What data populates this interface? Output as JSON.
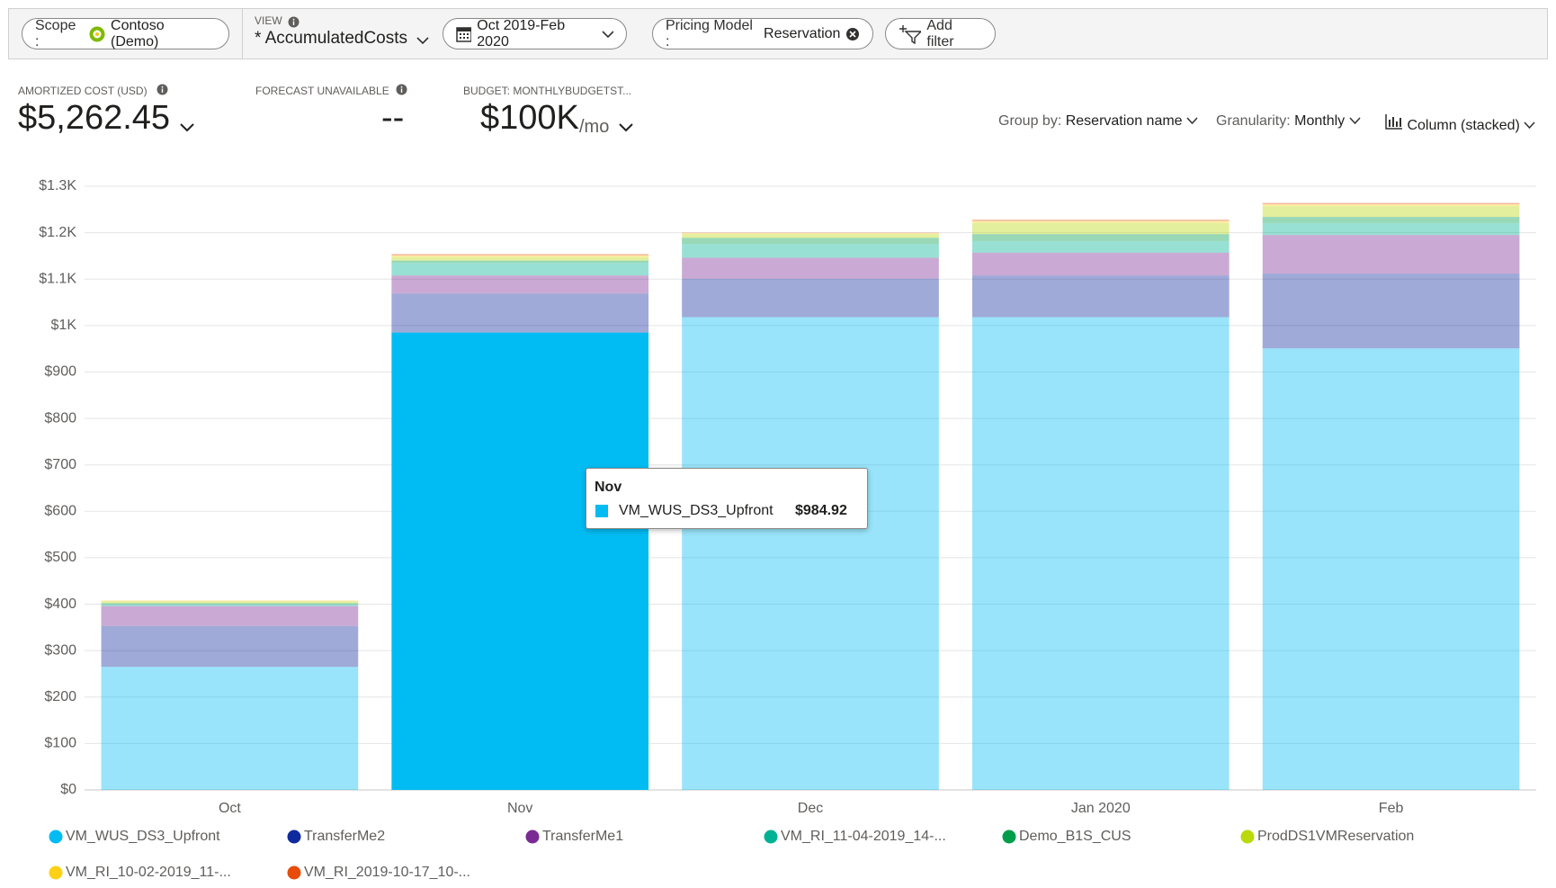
{
  "toolbar": {
    "scope": {
      "label": "Scope :",
      "value": "Contoso (Demo)"
    },
    "view": {
      "label": "VIEW",
      "value": "* AccumulatedCosts"
    },
    "date_range": "Oct 2019-Feb 2020",
    "filter": {
      "label": "Pricing Model :",
      "value": "Reservation"
    },
    "add_filter": "Add filter"
  },
  "kpis": [
    {
      "label": "AMORTIZED COST (USD)",
      "value": "$5,262.45"
    },
    {
      "label": "FORECAST UNAVAILABLE",
      "value": "--"
    },
    {
      "label": "BUDGET: MONTHLYBUDGETST...",
      "value": "$100K",
      "unit": "/mo"
    }
  ],
  "controls": [
    {
      "label": "Group by:",
      "value": "Reservation name"
    },
    {
      "label": "Granularity:",
      "value": "Monthly"
    },
    {
      "value": "Column (stacked)"
    }
  ],
  "chart_data": {
    "type": "bar",
    "stacked": true,
    "categories": [
      "Oct",
      "Nov",
      "Dec",
      "Jan 2020",
      "Feb"
    ],
    "series": [
      {
        "name": "VM_WUS_DS3_Upfront",
        "color": "#00bcf2",
        "values": [
          265,
          984.92,
          1018,
          1018,
          951
        ]
      },
      {
        "name": "TransferMe2",
        "color": "#0f2a9e",
        "values": [
          88,
          84,
          83,
          90,
          161
        ]
      },
      {
        "name": "TransferMe1",
        "color": "#7a2a93",
        "values": [
          43,
          39,
          45,
          49,
          83
        ]
      },
      {
        "name": "VM_RI_11-04-2019_14-...",
        "color": "#00b294",
        "values": [
          4,
          27,
          30,
          25,
          26
        ]
      },
      {
        "name": "Demo_B1S_CUS",
        "color": "#009e49",
        "values": [
          2,
          5,
          13,
          15,
          13
        ]
      },
      {
        "name": "ProdDS1VMReservation",
        "color": "#bad80a",
        "values": [
          4,
          8,
          8,
          24,
          23
        ]
      },
      {
        "name": "VM_RI_10-02-2019_11-...",
        "color": "#fcd116",
        "values": [
          2,
          3,
          2,
          4,
          4
        ]
      },
      {
        "name": "VM_RI_2019-10-17_10-...",
        "color": "#e74c0b",
        "values": [
          0,
          3,
          1,
          3,
          3
        ]
      }
    ],
    "ylim": [
      0,
      1300
    ],
    "yticks": [
      {
        "value": 0,
        "label": "$0"
      },
      {
        "value": 100,
        "label": "$100"
      },
      {
        "value": 200,
        "label": "$200"
      },
      {
        "value": 300,
        "label": "$300"
      },
      {
        "value": 400,
        "label": "$400"
      },
      {
        "value": 500,
        "label": "$500"
      },
      {
        "value": 600,
        "label": "$600"
      },
      {
        "value": 700,
        "label": "$700"
      },
      {
        "value": 800,
        "label": "$800"
      },
      {
        "value": 900,
        "label": "$900"
      },
      {
        "value": 1000,
        "label": "$1K"
      },
      {
        "value": 1100,
        "label": "$1.1K"
      },
      {
        "value": 1200,
        "label": "$1.2K"
      },
      {
        "value": 1300,
        "label": "$1.3K"
      }
    ],
    "grid": true,
    "tooltip": {
      "title": "Nov",
      "name": "VM_WUS_DS3_Upfront",
      "value": "$984.92"
    }
  }
}
